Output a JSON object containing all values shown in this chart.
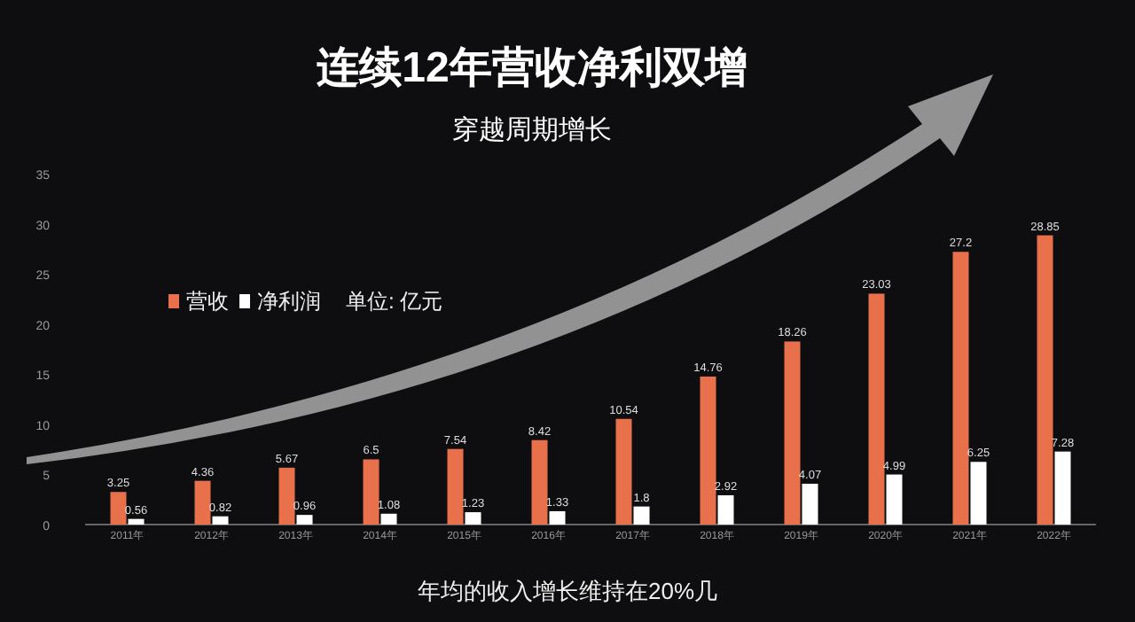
{
  "chart_data": {
    "type": "bar",
    "title": "连续12年营收净利双增",
    "subtitle": "穿越周期增长",
    "categories": [
      "2011年",
      "2012年",
      "2013年",
      "2014年",
      "2015年",
      "2016年",
      "2017年",
      "2018年",
      "2019年",
      "2020年",
      "2021年",
      "2022年"
    ],
    "series": [
      {
        "name": "营收",
        "color": "#e8714b",
        "values": [
          3.25,
          4.36,
          5.67,
          6.5,
          7.54,
          8.42,
          10.54,
          14.76,
          18.26,
          23.03,
          27.2,
          28.85
        ]
      },
      {
        "name": "净利润",
        "color": "#ffffff",
        "values": [
          0.56,
          0.82,
          0.96,
          1.08,
          1.23,
          1.33,
          1.8,
          2.92,
          4.07,
          4.99,
          6.25,
          7.28
        ]
      }
    ],
    "ylim": [
      0,
      35
    ],
    "yticks": [
      0,
      5,
      10,
      15,
      20,
      25,
      30,
      35
    ],
    "data_labels": true,
    "legend": "left",
    "annotations": [
      "单位: 亿元",
      "年均的收入增长维持在20%几"
    ]
  }
}
